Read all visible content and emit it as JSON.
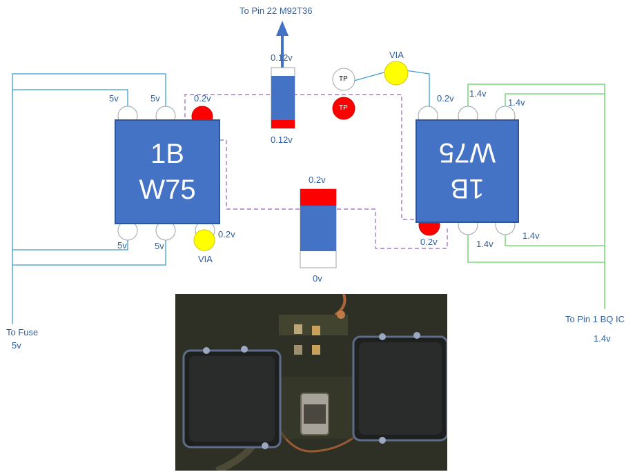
{
  "title_arrow_label": "To Pin 22 M92T36",
  "chips": {
    "left": {
      "line1": "1B",
      "line2": "W75"
    },
    "right": {
      "line1": "1B",
      "line2": "W75"
    }
  },
  "labels": {
    "left_top_pin1": "5v",
    "left_top_pin2": "5v",
    "left_top_pin3": "0.2v",
    "left_bottom_pin1": "5v",
    "left_bottom_pin2": "5v",
    "left_bottom_pin3": "0.2v",
    "left_via": "VIA",
    "top_resistor_top": "0.12v",
    "top_resistor_bottom": "0.12v",
    "tp_white": "TP",
    "tp_red": "TP",
    "right_via": "VIA",
    "right_top_pin1": "0.2v",
    "right_top_pin2": "1.4v",
    "right_top_pin3": "1.4v",
    "right_bottom_pin1": "0.2v",
    "right_bottom_pin2": "1.4v",
    "right_bottom_pin3": "1.4v",
    "center_cap_top": "0.2v",
    "center_cap_bottom": "0v",
    "to_fuse_line1": "To Fuse",
    "to_fuse_line2": "5v",
    "to_bq_line1": "To Pin 1 BQ IC",
    "to_bq_line2": "1.4v"
  },
  "colors": {
    "chip_blue": "#4472c4",
    "wire_blue": "#3d9cd2",
    "wire_green": "#5fd35f",
    "wire_dashed": "#a678c4",
    "pad_red": "#ff0000",
    "pad_yellow": "#ffff00",
    "text_blue": "#2e5fa0"
  }
}
